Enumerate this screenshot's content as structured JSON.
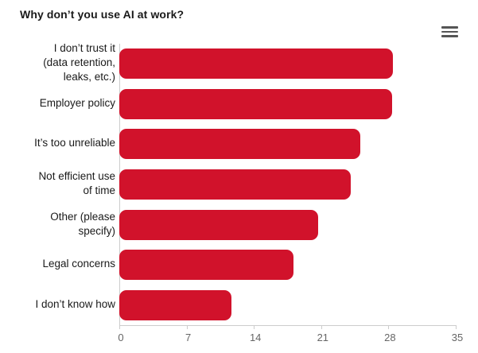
{
  "header": {
    "title": "Why don’t you use AI at work?"
  },
  "menu": {
    "icon": "hamburger-menu-icon"
  },
  "colors": {
    "background": "#ffffff",
    "bar": "#d1122b",
    "title_text": "#1a1a1a",
    "category_label_text": "#1a1a1a",
    "axis_label_text": "#666666",
    "axis_line": "#cccccc",
    "menu_icon": "#555555"
  },
  "chart_data": {
    "type": "bar",
    "orientation": "horizontal",
    "title": "Why don’t you use AI at work?",
    "categories": [
      "I don’t trust it (data retention, leaks, etc.)",
      "Employer policy",
      "It’s too unreliable",
      "Not efficient use of time",
      "Other (please specify)",
      "Legal concerns",
      "I don’t know how"
    ],
    "category_label_lines": [
      [
        "I don’t trust it",
        "(data retention,",
        "leaks, etc.)"
      ],
      [
        "Employer policy"
      ],
      [
        "It’s too unreliable"
      ],
      [
        "Not efficient use",
        "of time"
      ],
      [
        "Other (please",
        "specify)"
      ],
      [
        "Legal concerns"
      ],
      [
        "I don’t know how"
      ]
    ],
    "values": [
      28.5,
      28.4,
      25.1,
      24.1,
      20.7,
      18.1,
      11.7
    ],
    "xlabel": "",
    "ylabel": "",
    "value_axis": {
      "min": 0,
      "max": 35,
      "tick_interval": 7,
      "ticks": [
        0,
        7,
        14,
        21,
        28,
        35
      ]
    },
    "legend": false,
    "grid": false
  }
}
